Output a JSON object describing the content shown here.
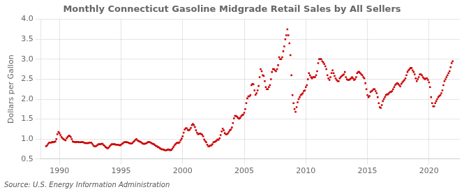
{
  "chart_data": {
    "type": "scatter",
    "title": "Monthly Connecticut Gasoline Midgrade Retail Sales by All Sellers",
    "ylabel": "Dollars per Gallon",
    "annotation": "Source: U.S. Energy Information Administration",
    "color": "#cc0000",
    "marker": "square",
    "grid": true,
    "xlim": [
      1988.5,
      2022.5
    ],
    "ylim": [
      0.5,
      4.0
    ],
    "xticks": [
      1990,
      1995,
      2000,
      2005,
      2010,
      2015,
      2020
    ],
    "yticks": [
      0.5,
      {
        "value": 1.0,
        "label": "1.0"
      },
      1.5,
      {
        "value": 2.0,
        "label": "2.0"
      },
      2.5,
      {
        "value": 3.0,
        "label": "3.0"
      },
      3.5,
      {
        "value": 4.0,
        "label": "4.0"
      }
    ],
    "x": [
      1988.917,
      1989.0,
      1989.083,
      1989.167,
      1989.25,
      1989.333,
      1989.417,
      1989.5,
      1989.583,
      1989.667,
      1989.75,
      1989.833,
      1989.917,
      1990.0,
      1990.083,
      1990.167,
      1990.25,
      1990.333,
      1990.417,
      1990.5,
      1990.583,
      1990.667,
      1990.75,
      1990.833,
      1990.917,
      1991.0,
      1991.083,
      1991.167,
      1991.25,
      1991.333,
      1991.417,
      1991.5,
      1991.583,
      1991.667,
      1991.75,
      1991.833,
      1991.917,
      1992.0,
      1992.083,
      1992.167,
      1992.25,
      1992.333,
      1992.417,
      1992.5,
      1992.583,
      1992.667,
      1992.75,
      1992.833,
      1992.917,
      1993.0,
      1993.083,
      1993.167,
      1993.25,
      1993.333,
      1993.417,
      1993.5,
      1993.583,
      1993.667,
      1993.75,
      1993.833,
      1993.917,
      1994.0,
      1994.083,
      1994.167,
      1994.25,
      1994.333,
      1994.417,
      1994.5,
      1994.583,
      1994.667,
      1994.75,
      1994.833,
      1994.917,
      1995.0,
      1995.083,
      1995.167,
      1995.25,
      1995.333,
      1995.417,
      1995.5,
      1995.583,
      1995.667,
      1995.75,
      1995.833,
      1995.917,
      1996.0,
      1996.083,
      1996.167,
      1996.25,
      1996.333,
      1996.417,
      1996.5,
      1996.583,
      1996.667,
      1996.75,
      1996.833,
      1996.917,
      1997.0,
      1997.083,
      1997.167,
      1997.25,
      1997.333,
      1997.417,
      1997.5,
      1997.583,
      1997.667,
      1997.75,
      1997.833,
      1997.917,
      1998.0,
      1998.083,
      1998.167,
      1998.25,
      1998.333,
      1998.417,
      1998.5,
      1998.583,
      1998.667,
      1998.75,
      1998.833,
      1998.917,
      1999.0,
      1999.083,
      1999.167,
      1999.25,
      1999.333,
      1999.417,
      1999.5,
      1999.583,
      1999.667,
      1999.75,
      1999.833,
      1999.917,
      2000.0,
      2000.083,
      2000.167,
      2000.25,
      2000.333,
      2000.417,
      2000.5,
      2000.583,
      2000.667,
      2000.75,
      2000.833,
      2000.917,
      2001.0,
      2001.083,
      2001.167,
      2001.25,
      2001.333,
      2001.417,
      2001.5,
      2001.583,
      2001.667,
      2001.75,
      2001.833,
      2001.917,
      2002.0,
      2002.083,
      2002.167,
      2002.25,
      2002.333,
      2002.417,
      2002.5,
      2002.583,
      2002.667,
      2002.75,
      2002.833,
      2002.917,
      2003.0,
      2003.083,
      2003.167,
      2003.25,
      2003.333,
      2003.417,
      2003.5,
      2003.583,
      2003.667,
      2003.75,
      2003.833,
      2003.917,
      2004.0,
      2004.083,
      2004.167,
      2004.25,
      2004.333,
      2004.417,
      2004.5,
      2004.583,
      2004.667,
      2004.75,
      2004.833,
      2004.917,
      2005.0,
      2005.083,
      2005.167,
      2005.25,
      2005.333,
      2005.417,
      2005.5,
      2005.583,
      2005.667,
      2005.75,
      2005.833,
      2005.917,
      2006.0,
      2006.083,
      2006.167,
      2006.25,
      2006.333,
      2006.417,
      2006.5,
      2006.583,
      2006.667,
      2006.75,
      2006.833,
      2006.917,
      2007.0,
      2007.083,
      2007.167,
      2007.25,
      2007.333,
      2007.417,
      2007.5,
      2007.583,
      2007.667,
      2007.75,
      2007.833,
      2007.917,
      2008.0,
      2008.083,
      2008.167,
      2008.25,
      2008.333,
      2008.417,
      2008.5,
      2008.583,
      2008.667,
      2008.75,
      2008.833,
      2008.917,
      2009.0,
      2009.083,
      2009.167,
      2009.25,
      2009.333,
      2009.417,
      2009.5,
      2009.583,
      2009.667,
      2009.75,
      2009.833,
      2009.917,
      2010.0,
      2010.083,
      2010.167,
      2010.25,
      2010.333,
      2010.417,
      2010.5,
      2010.583,
      2010.667,
      2010.75,
      2010.833,
      2010.917,
      2011.0,
      2011.083,
      2011.167,
      2011.25,
      2011.333,
      2011.417,
      2011.5,
      2011.583,
      2011.667,
      2011.75,
      2011.833,
      2011.917,
      2012.0,
      2012.083,
      2012.167,
      2012.25,
      2012.333,
      2012.417,
      2012.5,
      2012.583,
      2012.667,
      2012.75,
      2012.833,
      2012.917,
      2013.0,
      2013.083,
      2013.167,
      2013.25,
      2013.333,
      2013.417,
      2013.5,
      2013.583,
      2013.667,
      2013.75,
      2013.833,
      2013.917,
      2014.0,
      2014.083,
      2014.167,
      2014.25,
      2014.333,
      2014.417,
      2014.5,
      2014.583,
      2014.667,
      2014.75,
      2014.833,
      2014.917,
      2015.0,
      2015.083,
      2015.167,
      2015.25,
      2015.333,
      2015.417,
      2015.5,
      2015.583,
      2015.667,
      2015.75,
      2015.833,
      2015.917,
      2016.0,
      2016.083,
      2016.167,
      2016.25,
      2016.333,
      2016.417,
      2016.5,
      2016.583,
      2016.667,
      2016.75,
      2016.833,
      2016.917,
      2017.0,
      2017.083,
      2017.167,
      2017.25,
      2017.333,
      2017.417,
      2017.5,
      2017.583,
      2017.667,
      2017.75,
      2017.833,
      2017.917,
      2018.0,
      2018.083,
      2018.167,
      2018.25,
      2018.333,
      2018.417,
      2018.5,
      2018.583,
      2018.667,
      2018.75,
      2018.833,
      2018.917,
      2019.0,
      2019.083,
      2019.167,
      2019.25,
      2019.333,
      2019.417,
      2019.5,
      2019.583,
      2019.667,
      2019.75,
      2019.833,
      2019.917,
      2020.0,
      2020.083,
      2020.167,
      2020.25,
      2020.333,
      2020.417,
      2020.5,
      2020.583,
      2020.667,
      2020.75,
      2020.833,
      2020.917,
      2021.0,
      2021.083,
      2021.167,
      2021.25,
      2021.333,
      2021.417,
      2021.5,
      2021.583,
      2021.667,
      2021.75,
      2021.833,
      2021.917
    ],
    "values": [
      0.82,
      0.84,
      0.88,
      0.91,
      0.91,
      0.91,
      0.93,
      0.92,
      0.93,
      0.94,
      1.0,
      1.12,
      1.18,
      1.15,
      1.1,
      1.05,
      1.02,
      1.0,
      0.98,
      0.97,
      1.02,
      1.05,
      1.08,
      1.08,
      1.05,
      1.0,
      0.94,
      0.93,
      0.93,
      0.92,
      0.93,
      0.93,
      0.92,
      0.92,
      0.92,
      0.93,
      0.92,
      0.91,
      0.9,
      0.9,
      0.9,
      0.9,
      0.91,
      0.91,
      0.91,
      0.88,
      0.84,
      0.82,
      0.82,
      0.83,
      0.85,
      0.87,
      0.87,
      0.87,
      0.88,
      0.88,
      0.85,
      0.83,
      0.8,
      0.78,
      0.77,
      0.79,
      0.82,
      0.85,
      0.87,
      0.87,
      0.87,
      0.87,
      0.86,
      0.86,
      0.86,
      0.85,
      0.84,
      0.86,
      0.88,
      0.9,
      0.92,
      0.92,
      0.93,
      0.92,
      0.91,
      0.9,
      0.89,
      0.89,
      0.9,
      0.93,
      0.95,
      0.98,
      1.0,
      0.97,
      0.95,
      0.94,
      0.93,
      0.91,
      0.89,
      0.88,
      0.88,
      0.89,
      0.9,
      0.92,
      0.93,
      0.92,
      0.91,
      0.89,
      0.88,
      0.87,
      0.85,
      0.83,
      0.82,
      0.8,
      0.79,
      0.77,
      0.75,
      0.74,
      0.74,
      0.73,
      0.72,
      0.72,
      0.73,
      0.74,
      0.73,
      0.72,
      0.73,
      0.76,
      0.8,
      0.84,
      0.87,
      0.9,
      0.91,
      0.9,
      0.92,
      0.97,
      1.01,
      1.07,
      1.16,
      1.24,
      1.27,
      1.27,
      1.23,
      1.22,
      1.24,
      1.28,
      1.35,
      1.38,
      1.35,
      1.3,
      1.22,
      1.16,
      1.12,
      1.13,
      1.14,
      1.13,
      1.11,
      1.07,
      0.99,
      0.95,
      0.92,
      0.86,
      0.82,
      0.82,
      0.84,
      0.84,
      0.87,
      0.92,
      0.93,
      0.94,
      0.96,
      0.99,
      0.98,
      1.02,
      1.1,
      1.19,
      1.26,
      1.22,
      1.15,
      1.12,
      1.12,
      1.14,
      1.18,
      1.22,
      1.24,
      1.29,
      1.4,
      1.52,
      1.58,
      1.58,
      1.56,
      1.53,
      1.51,
      1.53,
      1.57,
      1.6,
      1.61,
      1.66,
      1.75,
      1.9,
      2.02,
      2.07,
      2.07,
      2.1,
      2.35,
      2.38,
      2.37,
      2.22,
      2.11,
      2.15,
      2.22,
      2.33,
      2.55,
      2.75,
      2.7,
      2.6,
      2.58,
      2.45,
      2.3,
      2.25,
      2.25,
      2.3,
      2.35,
      2.5,
      2.68,
      2.75,
      2.75,
      2.72,
      2.7,
      2.75,
      2.85,
      3.05,
      3.0,
      3.0,
      3.05,
      3.2,
      3.32,
      3.5,
      3.6,
      3.75,
      3.6,
      3.4,
      3.1,
      2.6,
      2.1,
      1.9,
      1.75,
      1.68,
      1.8,
      1.92,
      2.0,
      2.05,
      2.1,
      2.12,
      2.15,
      2.2,
      2.22,
      2.3,
      2.35,
      2.5,
      2.65,
      2.6,
      2.55,
      2.52,
      2.55,
      2.55,
      2.55,
      2.6,
      2.7,
      2.9,
      3.0,
      3.0,
      3.0,
      2.95,
      2.92,
      2.88,
      2.82,
      2.75,
      2.6,
      2.52,
      2.48,
      2.55,
      2.65,
      2.72,
      2.65,
      2.58,
      2.52,
      2.48,
      2.45,
      2.45,
      2.52,
      2.55,
      2.58,
      2.6,
      2.62,
      2.68,
      2.55,
      2.5,
      2.48,
      2.48,
      2.5,
      2.52,
      2.55,
      2.52,
      2.48,
      2.5,
      2.55,
      2.65,
      2.68,
      2.68,
      2.65,
      2.62,
      2.6,
      2.55,
      2.52,
      2.4,
      2.25,
      2.1,
      2.05,
      2.08,
      2.18,
      2.2,
      2.22,
      2.25,
      2.25,
      2.2,
      2.15,
      2.05,
      1.9,
      1.8,
      1.78,
      1.85,
      1.95,
      2.0,
      2.05,
      2.1,
      2.12,
      2.12,
      2.15,
      2.18,
      2.18,
      2.2,
      2.25,
      2.3,
      2.35,
      2.38,
      2.4,
      2.38,
      2.35,
      2.32,
      2.38,
      2.42,
      2.45,
      2.48,
      2.52,
      2.6,
      2.68,
      2.72,
      2.75,
      2.78,
      2.78,
      2.72,
      2.68,
      2.62,
      2.52,
      2.45,
      2.5,
      2.55,
      2.62,
      2.62,
      2.6,
      2.55,
      2.52,
      2.5,
      2.52,
      2.52,
      2.48,
      2.42,
      2.3,
      2.05,
      1.9,
      1.82,
      1.82,
      1.9,
      1.95,
      2.0,
      2.05,
      2.08,
      2.1,
      2.15,
      2.22,
      2.35,
      2.45,
      2.5,
      2.55,
      2.6,
      2.65,
      2.7,
      2.8,
      2.9,
      2.95
    ]
  }
}
